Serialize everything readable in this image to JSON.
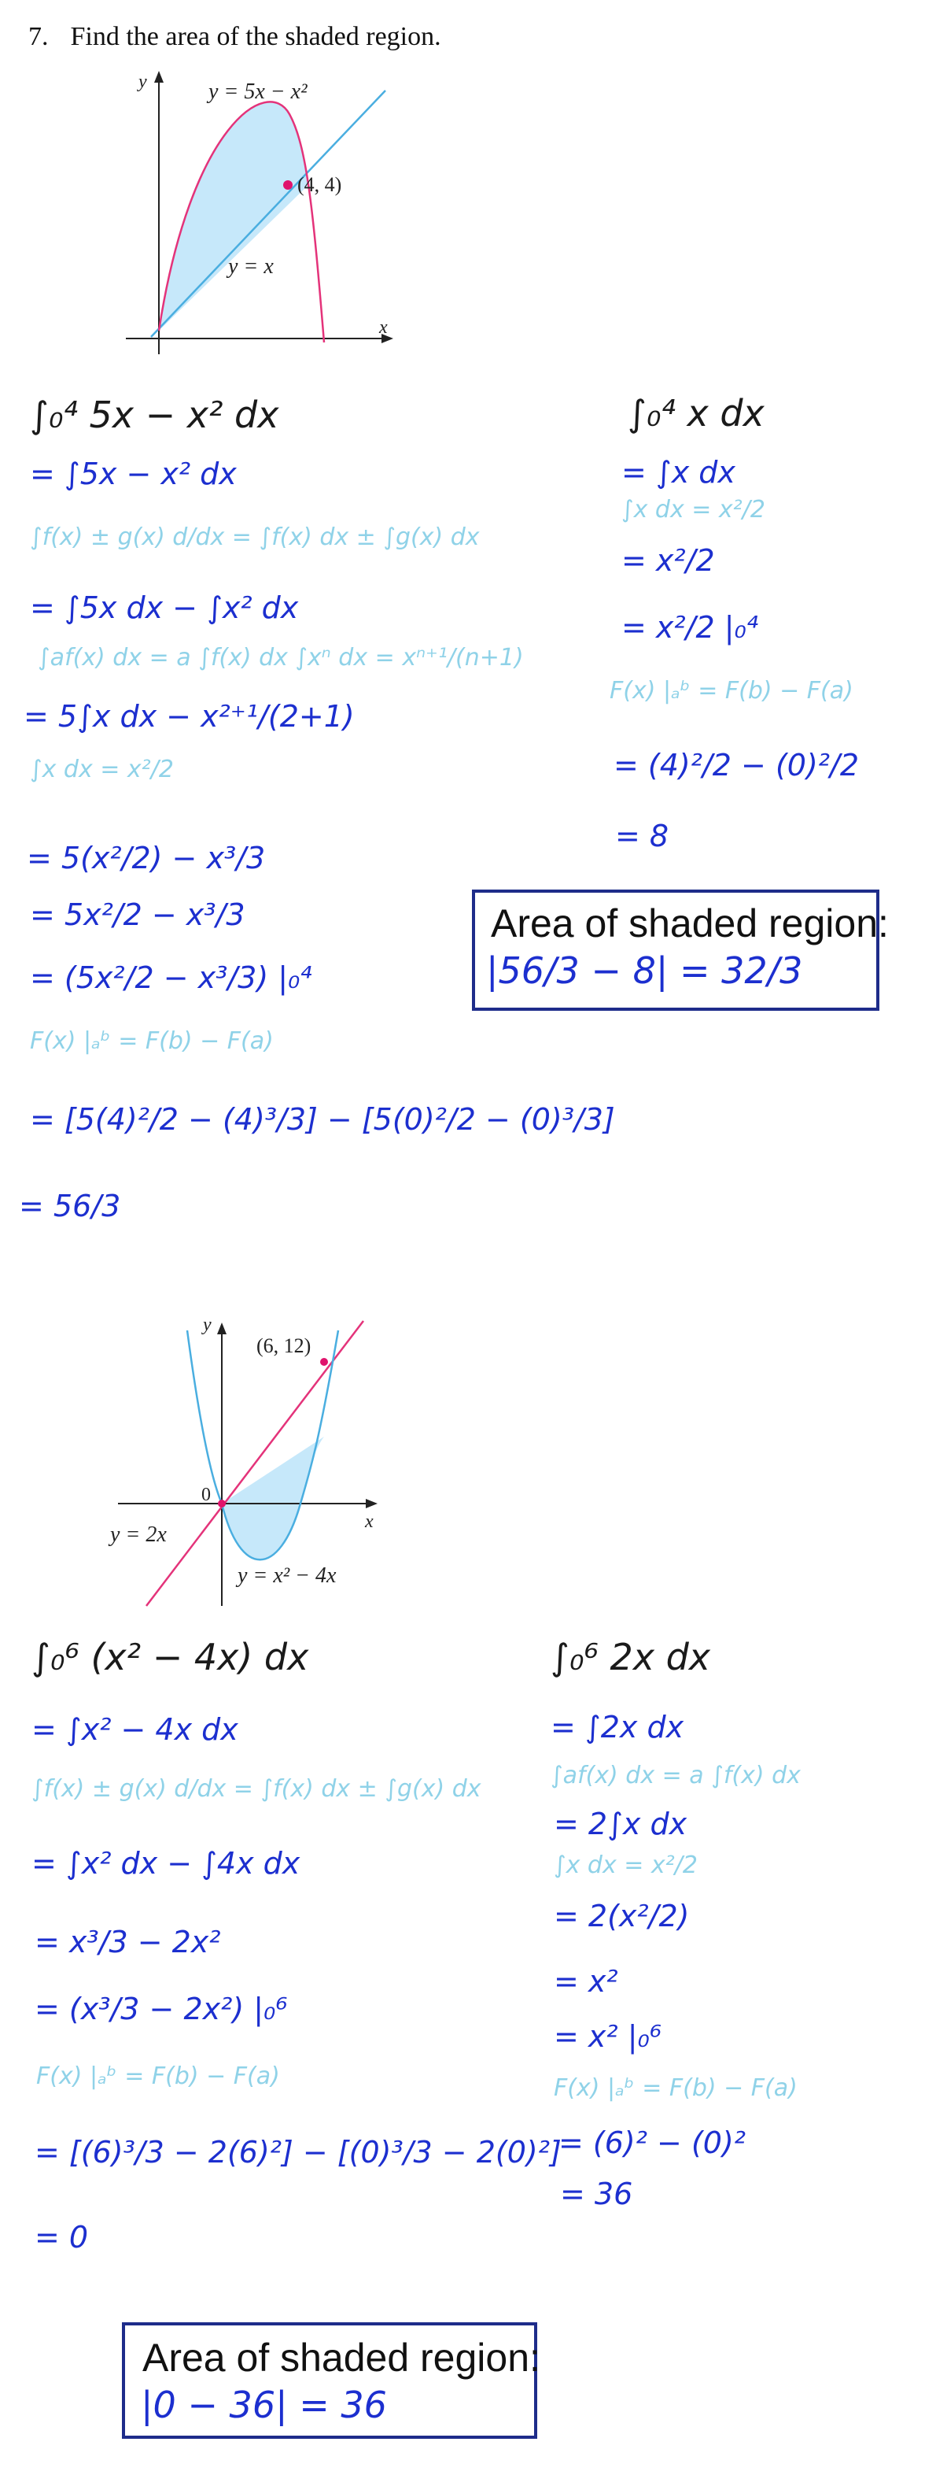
{
  "problem": {
    "number": "7.",
    "text": "Find the area of the shaded region."
  },
  "graph1": {
    "y_axis": "y",
    "x_axis": "x",
    "curve_label": "y = 5x − x²",
    "line_label": "y = x",
    "point_label": "(4, 4)",
    "colors": {
      "curve": "#e4337a",
      "line": "#4aaee0",
      "shade": "#c6e8fa",
      "point": "#e0136c"
    }
  },
  "part1_left": [
    {
      "text": "∫₀⁴ 5x − x² dx",
      "ink": "black"
    },
    {
      "text": "= ∫5x − x² dx",
      "ink": "blue"
    },
    {
      "text": "∫f(x) ± g(x) d/dx = ∫f(x) dx ± ∫g(x) dx",
      "ink": "cyan"
    },
    {
      "text": "= ∫5x dx − ∫x² dx",
      "ink": "blue"
    },
    {
      "text": "∫af(x) dx = a ∫f(x) dx      ∫xⁿ dx = xⁿ⁺¹/(n+1)",
      "ink": "cyan"
    },
    {
      "text": "= 5∫x dx − x²⁺¹/(2+1)",
      "ink": "blue"
    },
    {
      "text": "∫x dx = x²/2",
      "ink": "cyan"
    },
    {
      "text": "= 5(x²/2) − x³/3",
      "ink": "blue"
    },
    {
      "text": "= 5x²/2 − x³/3",
      "ink": "blue"
    },
    {
      "text": "= (5x²/2 − x³/3) |₀⁴",
      "ink": "blue"
    },
    {
      "text": "F(x) |ₐᵇ = F(b) − F(a)",
      "ink": "cyan"
    },
    {
      "text": "= [5(4)²/2 − (4)³/3] − [5(0)²/2 − (0)³/3]",
      "ink": "blue"
    },
    {
      "text": "= 56/3",
      "ink": "blue"
    }
  ],
  "part1_right": [
    {
      "text": "∫₀⁴ x dx",
      "ink": "black"
    },
    {
      "text": "= ∫x dx",
      "ink": "blue"
    },
    {
      "text": "∫x dx = x²/2",
      "ink": "cyan"
    },
    {
      "text": "= x²/2",
      "ink": "blue"
    },
    {
      "text": "= x²/2 |₀⁴",
      "ink": "blue"
    },
    {
      "text": "F(x) |ₐᵇ = F(b) − F(a)",
      "ink": "cyan"
    },
    {
      "text": "= (4)²/2 − (0)²/2",
      "ink": "blue"
    },
    {
      "text": "= 8",
      "ink": "blue"
    }
  ],
  "answer1": {
    "title": "Area of shaded region:",
    "value": "|56/3 − 8| = 32/3"
  },
  "graph2": {
    "y_axis": "y",
    "x_axis": "x",
    "origin_label": "0",
    "point_label": "(6, 12)",
    "line_label": "y = 2x",
    "curve_label": "y = x² − 4x",
    "colors": {
      "curve": "#4aaee0",
      "line": "#e4337a",
      "shade": "#c6e8fa",
      "point": "#e0136c"
    }
  },
  "part2_left": [
    {
      "text": "∫₀⁶ (x² − 4x) dx",
      "ink": "black"
    },
    {
      "text": "= ∫x² − 4x dx",
      "ink": "blue"
    },
    {
      "text": "∫f(x) ± g(x) d/dx = ∫f(x) dx ± ∫g(x) dx",
      "ink": "cyan"
    },
    {
      "text": "= ∫x² dx − ∫4x dx",
      "ink": "blue"
    },
    {
      "text": "= x³/3 − 2x²",
      "ink": "blue"
    },
    {
      "text": "= (x³/3 − 2x²) |₀⁶",
      "ink": "blue"
    },
    {
      "text": "F(x) |ₐᵇ = F(b) − F(a)",
      "ink": "cyan"
    },
    {
      "text": "= [(6)³/3 − 2(6)²] − [(0)³/3 − 2(0)²]",
      "ink": "blue"
    },
    {
      "text": "= 0",
      "ink": "blue"
    }
  ],
  "part2_right": [
    {
      "text": "∫₀⁶ 2x dx",
      "ink": "black"
    },
    {
      "text": "= ∫2x dx",
      "ink": "blue"
    },
    {
      "text": "∫af(x) dx = a ∫f(x) dx",
      "ink": "cyan"
    },
    {
      "text": "= 2∫x dx",
      "ink": "blue"
    },
    {
      "text": "∫x dx = x²/2",
      "ink": "cyan"
    },
    {
      "text": "= 2(x²/2)",
      "ink": "blue"
    },
    {
      "text": "= x²",
      "ink": "blue"
    },
    {
      "text": "= x² |₀⁶",
      "ink": "blue"
    },
    {
      "text": "F(x) |ₐᵇ = F(b) − F(a)",
      "ink": "cyan"
    },
    {
      "text": "= (6)² − (0)²",
      "ink": "blue"
    },
    {
      "text": "= 36",
      "ink": "blue"
    }
  ],
  "answer2": {
    "title": "Area of shaded region:",
    "value": "|0 − 36| = 36"
  }
}
